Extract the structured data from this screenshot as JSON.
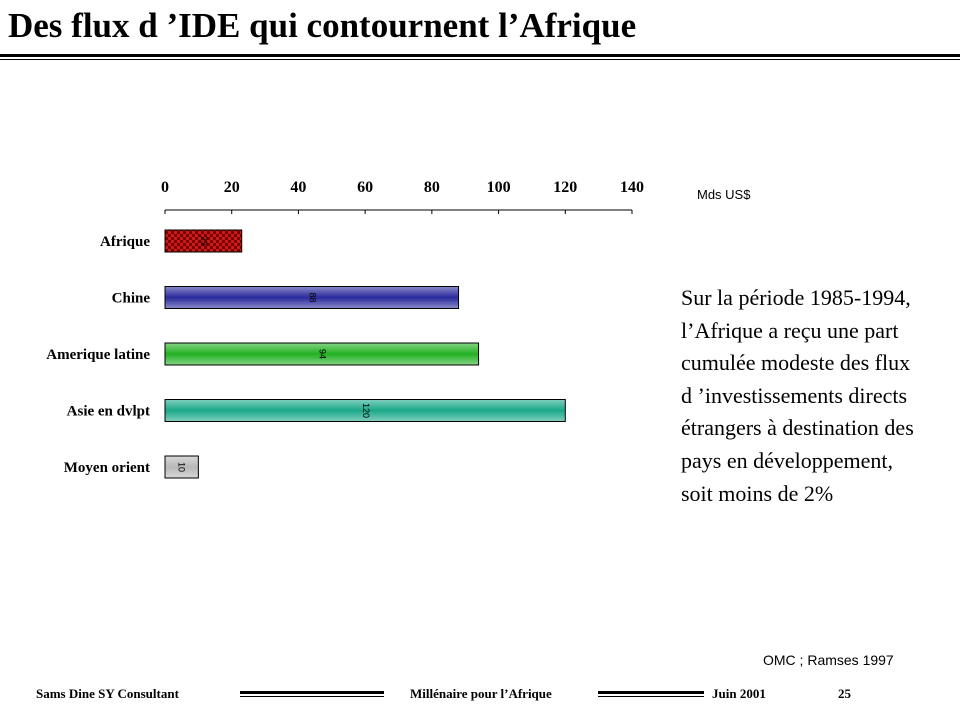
{
  "slide": {
    "title": "Des flux d ’IDE qui contournent l’Afrique",
    "note": "Sur la période 1985-1994, l’Afrique a reçu une part cumulée modeste des flux d ’investissements directs étrangers à destination des pays en développement, soit moins de 2%",
    "source": "OMC  ; Ramses 1997"
  },
  "footer": {
    "left": "Sams Dine SY Consultant",
    "center": "Millénaire pour l’Afrique",
    "date": "Juin  2001",
    "page": "25"
  },
  "chart_data": {
    "type": "bar",
    "orientation": "horizontal",
    "unit_label": "Mds  US$",
    "xlim": [
      0,
      140
    ],
    "ticks": [
      "0",
      "20",
      "40",
      "60",
      "80",
      "100",
      "120",
      "140"
    ],
    "categories": [
      "Afrique",
      "Chine",
      "Amerique latine",
      "Asie en dvlpt",
      "Moyen orient"
    ],
    "values": [
      23,
      88,
      94,
      120,
      10
    ],
    "data_labels": [
      "23",
      "88",
      "94",
      "120",
      "10"
    ],
    "colors": [
      "#cc1a1a",
      "#2a2a9c",
      "#22b022",
      "#1aa888",
      "#b8b8b8"
    ],
    "patterns": [
      "checker",
      "gradient",
      "gradient",
      "gradient",
      "gradient"
    ],
    "axis_position": "top",
    "grid": false,
    "legend": "none"
  }
}
